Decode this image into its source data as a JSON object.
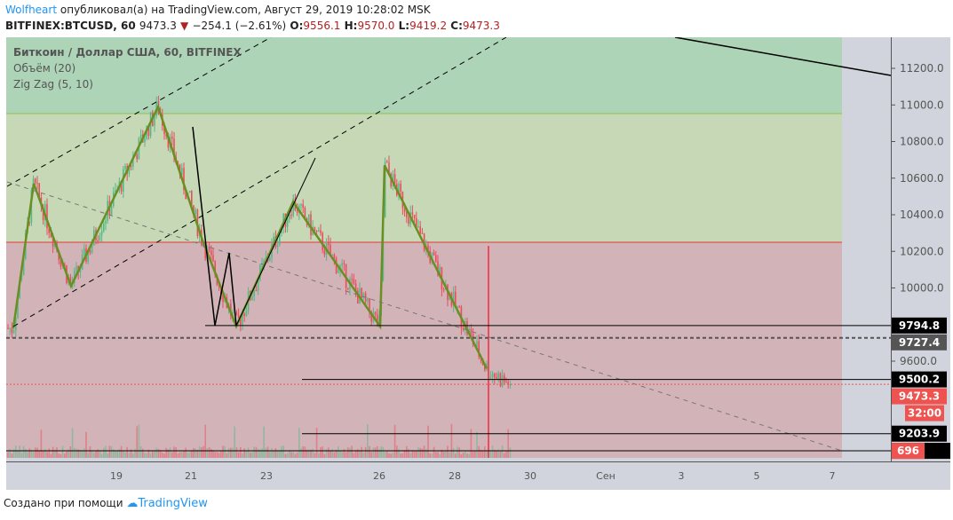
{
  "header": {
    "author": "Wolfheart",
    "published": "опубликовал(а) на TradingView.com, Август 29, 2019 10:28:02 MSK",
    "symbol": "BITFINEX:BTCUSD, 60",
    "last": "9473.3",
    "change": "−254.1 (−2.61%)",
    "o_label": "O:",
    "o": "9556.1",
    "h_label": "H:",
    "h": "9570.0",
    "l_label": "L:",
    "l": "9419.2",
    "c_label": "C:",
    "c": "9473.3"
  },
  "legend": [
    "Биткоин / Доллар США, 60, BITFINEX",
    "Объём (20)",
    "Zig Zag (5, 10)"
  ],
  "footer": {
    "text": "Создано при помощи",
    "brand": "TradingView"
  },
  "colors": {
    "up": "#53b987",
    "down": "#eb4d5c",
    "green_zone": "#aed4b8",
    "light_zone": "#c7d8b7",
    "red_zone": "#d2b3b8",
    "zigzag": "#6b8e23"
  },
  "chart_data": {
    "type": "candlestick",
    "title": "Биткоин / Доллар США, 60, BITFINEX",
    "y_ticks": [
      11200,
      11000,
      10800,
      10600,
      10400,
      10200,
      10000,
      9600
    ],
    "y_tick_labels": [
      "11200.0",
      "11000.0",
      "10800.0",
      "10600.0",
      "10400.0",
      "10200.0",
      "10000.0",
      "9600.0"
    ],
    "x_ticks": [
      "19",
      "21",
      "23",
      "26",
      "28",
      "30",
      "Сен",
      "3",
      "5",
      "7"
    ],
    "ylim": [
      9060,
      11380
    ],
    "zones": [
      {
        "from": 10953,
        "to": 11380,
        "color": "green"
      },
      {
        "from": 10250,
        "to": 10953,
        "color": "light-green"
      },
      {
        "from": 9060,
        "to": 10250,
        "color": "red"
      }
    ],
    "price_labels": [
      {
        "value": "9794.8",
        "price": 9794.8,
        "bg": "#000"
      },
      {
        "value": "9727.4",
        "price": 9727.4,
        "bg": "#555"
      },
      {
        "value": "9500.2",
        "price": 9500.2,
        "bg": "#000"
      },
      {
        "value": "9473.3",
        "price": 9473.3,
        "bg": "#ef5350"
      },
      {
        "value": "32:00",
        "price": 9380,
        "bg": "#ef5350"
      },
      {
        "value": "9203.9",
        "price": 9203.9,
        "bg": "#000"
      },
      {
        "value": "696",
        "price": 9110,
        "bg": "#ef5350"
      }
    ],
    "zigzag_prices": [
      9780,
      10570,
      10010,
      10990,
      10260,
      9790,
      10470,
      9790,
      10670,
      9560
    ],
    "last_price": 9473.3
  }
}
